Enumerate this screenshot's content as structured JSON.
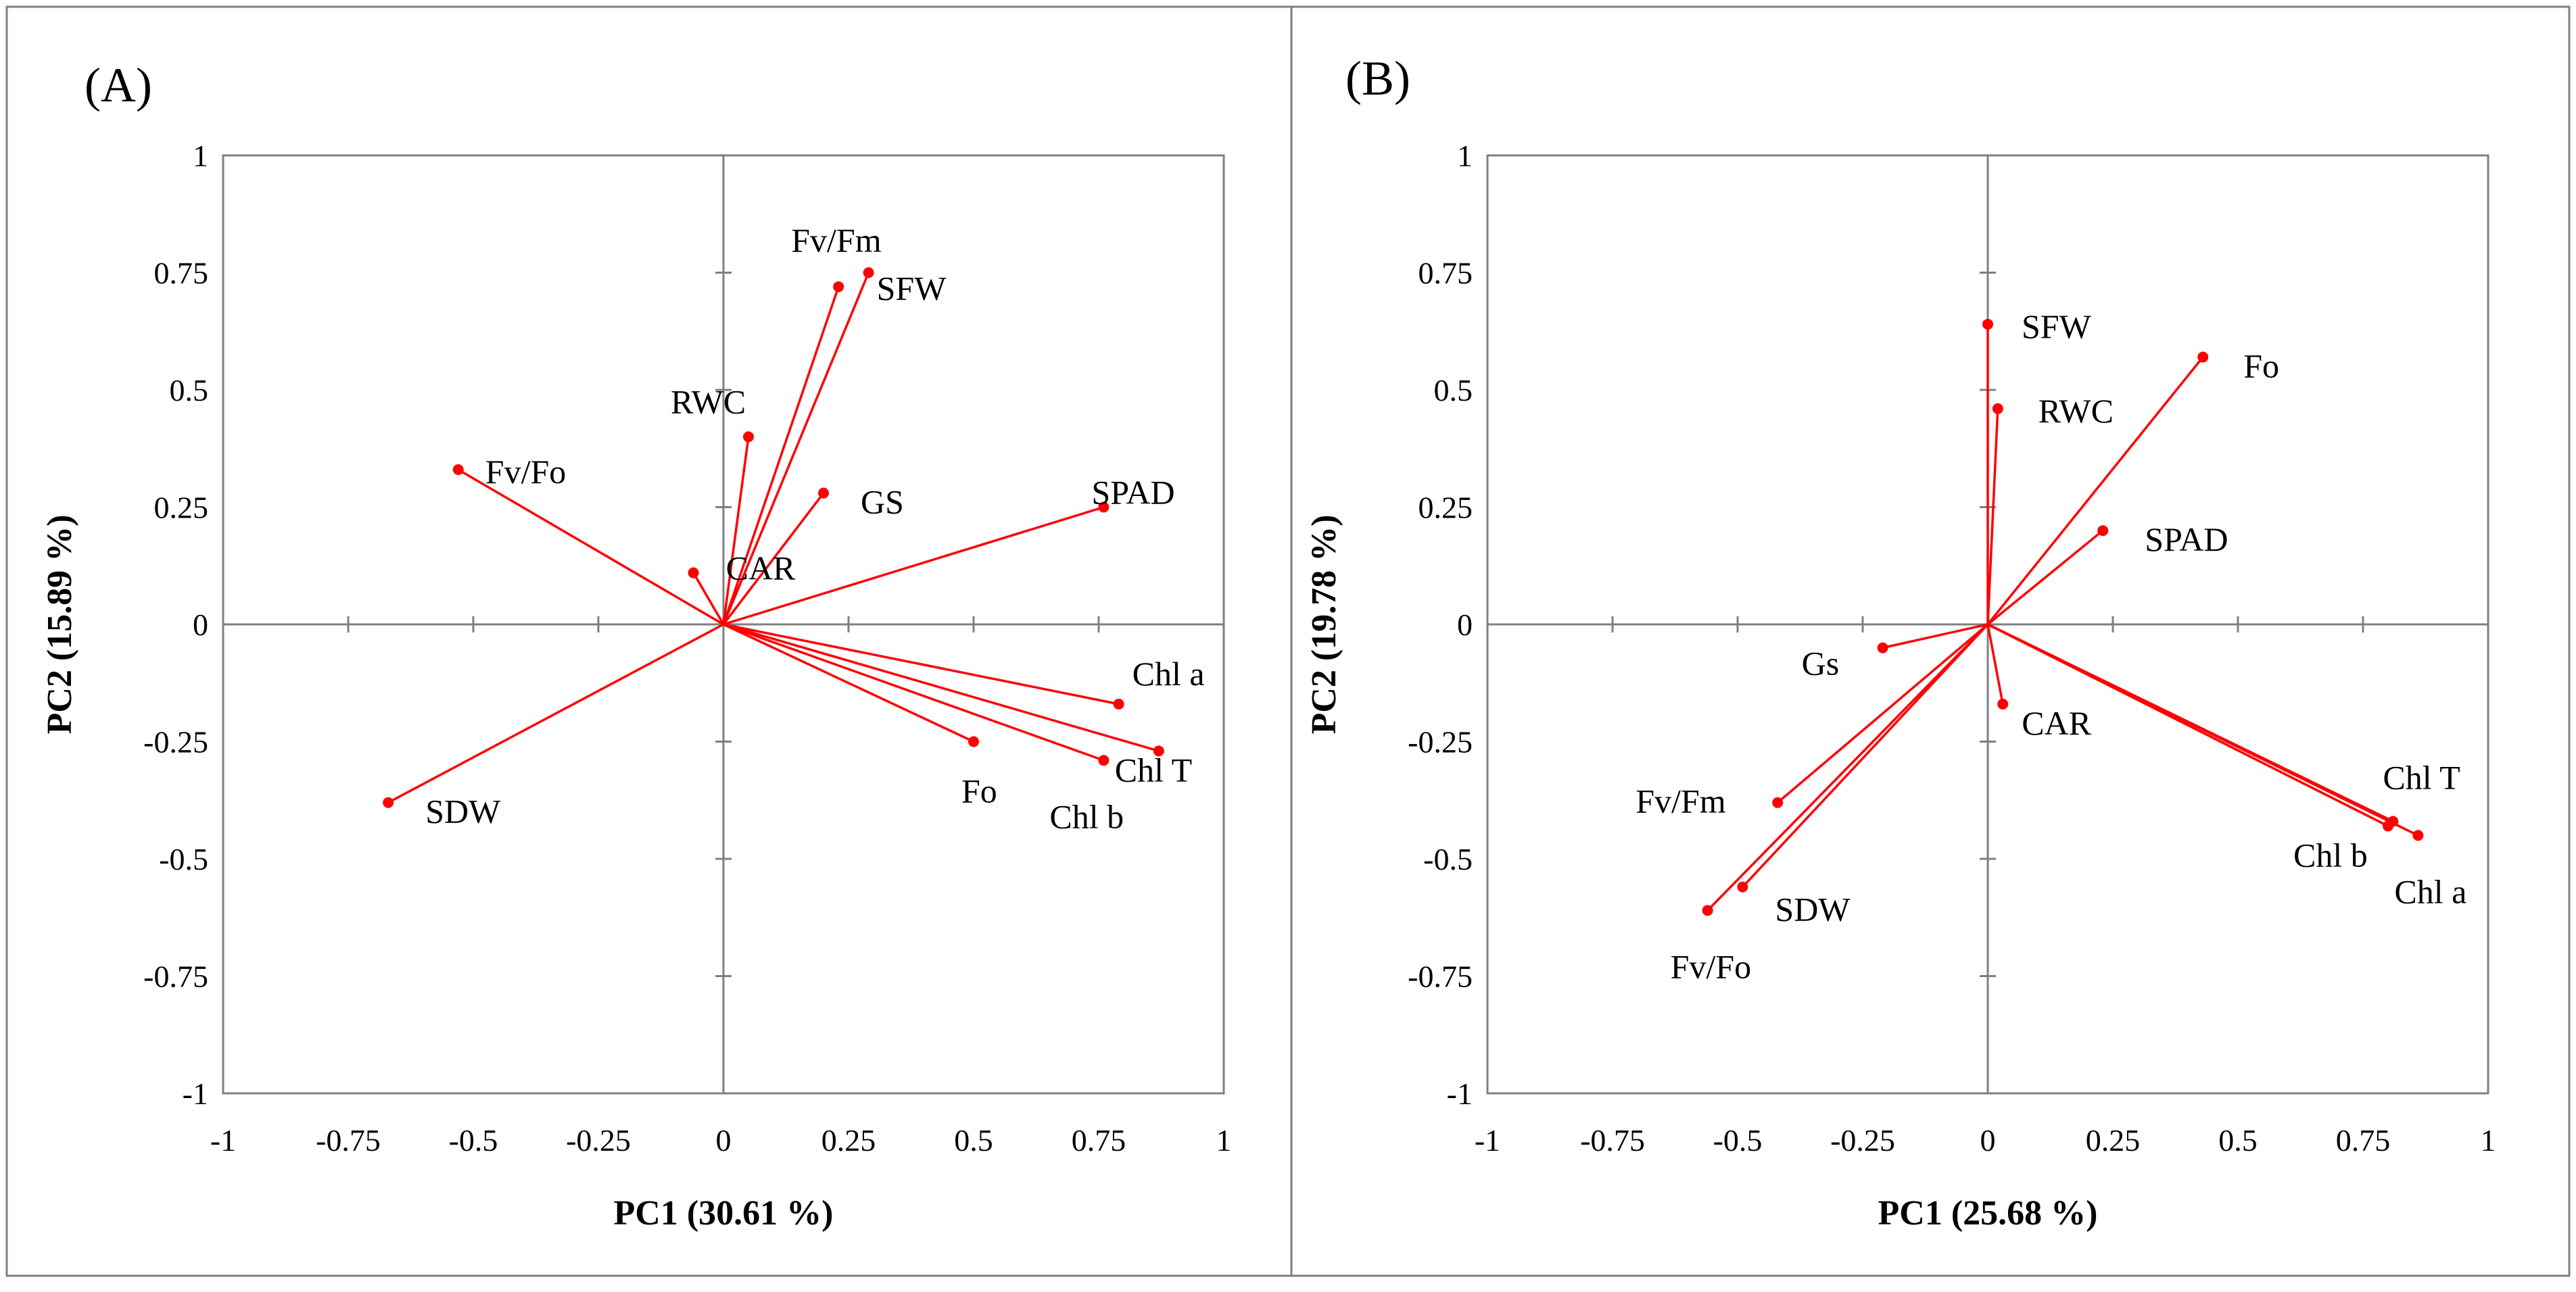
{
  "colors": {
    "vector": "#ff0000",
    "axis": "#7f7f7f",
    "frame": "#7f7f7f",
    "text": "#000000"
  },
  "chart_data": [
    {
      "type": "scatter",
      "panel_label": "(A)",
      "title": "",
      "xlabel": "PC1 (30.61 %)",
      "ylabel": "PC2 (15.89 %)",
      "xlim": [
        -1,
        1
      ],
      "ylim": [
        -1,
        1
      ],
      "xticks": [
        "-1",
        "-0.75",
        "-0.5",
        "-0.25",
        "0",
        "0.25",
        "0.5",
        "0.75",
        "1"
      ],
      "yticks": [
        "1",
        "0.75",
        "0.5",
        "0.25",
        "0",
        "-0.25",
        "-0.5",
        "-0.75",
        "-1"
      ],
      "grid": false,
      "vectors": [
        {
          "name": "Fv/Fm",
          "x": 0.23,
          "y": 0.72
        },
        {
          "name": "SFW",
          "x": 0.29,
          "y": 0.75
        },
        {
          "name": "RWC",
          "x": 0.05,
          "y": 0.4
        },
        {
          "name": "GS",
          "x": 0.2,
          "y": 0.28
        },
        {
          "name": "Fv/Fo",
          "x": -0.53,
          "y": 0.33
        },
        {
          "name": "SPAD",
          "x": 0.76,
          "y": 0.25
        },
        {
          "name": "CAR",
          "x": -0.06,
          "y": 0.11
        },
        {
          "name": "Chl a",
          "x": 0.79,
          "y": -0.17
        },
        {
          "name": "Chl T",
          "x": 0.87,
          "y": -0.27
        },
        {
          "name": "Chl b",
          "x": 0.76,
          "y": -0.29
        },
        {
          "name": "Fo",
          "x": 0.5,
          "y": -0.25
        },
        {
          "name": "SDW",
          "x": -0.67,
          "y": -0.38
        }
      ]
    },
    {
      "type": "scatter",
      "panel_label": "(B)",
      "title": "",
      "xlabel": "PC1 (25.68 %)",
      "ylabel": "PC2 (19.78 %)",
      "xlim": [
        -1,
        1
      ],
      "ylim": [
        -1,
        1
      ],
      "xticks": [
        "-1",
        "-0.75",
        "-0.5",
        "-0.25",
        "0",
        "0.25",
        "0.5",
        "0.75",
        "1"
      ],
      "yticks": [
        "1",
        "0.75",
        "0.5",
        "0.25",
        "0",
        "-0.25",
        "-0.5",
        "-0.75",
        "-1"
      ],
      "grid": false,
      "vectors": [
        {
          "name": "SFW",
          "x": 0.0,
          "y": 0.64
        },
        {
          "name": "RWC",
          "x": 0.02,
          "y": 0.46
        },
        {
          "name": "Fo",
          "x": 0.43,
          "y": 0.57
        },
        {
          "name": "SPAD",
          "x": 0.23,
          "y": 0.2
        },
        {
          "name": "Gs",
          "x": -0.21,
          "y": -0.05
        },
        {
          "name": "CAR",
          "x": 0.03,
          "y": -0.17
        },
        {
          "name": "Fv/Fm",
          "x": -0.42,
          "y": -0.38
        },
        {
          "name": "SDW",
          "x": -0.49,
          "y": -0.56
        },
        {
          "name": "Fv/Fo",
          "x": -0.56,
          "y": -0.61
        },
        {
          "name": "Chl T",
          "x": 0.81,
          "y": -0.42
        },
        {
          "name": "Chl b",
          "x": 0.8,
          "y": -0.43
        },
        {
          "name": "Chl a",
          "x": 0.86,
          "y": -0.45
        }
      ]
    }
  ]
}
